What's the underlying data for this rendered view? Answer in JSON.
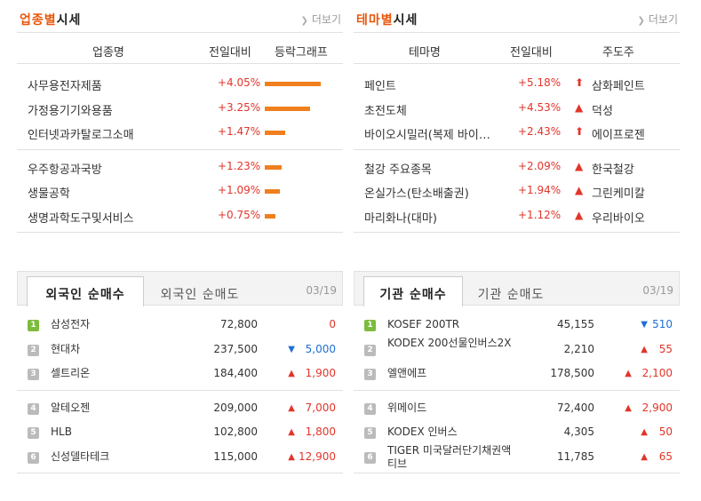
{
  "industry": {
    "title_highlight": "업종별",
    "title_rest": "시세",
    "more": "더보기",
    "columns": [
      "업종명",
      "전일대비",
      "등락그래프"
    ],
    "groups": [
      [
        {
          "name": "사무용전자제품",
          "change": "+4.05%",
          "pct": 4.05
        },
        {
          "name": "가정용기기와용품",
          "change": "+3.25%",
          "pct": 3.25
        },
        {
          "name": "인터넷과카탈로그소매",
          "change": "+1.47%",
          "pct": 1.47
        }
      ],
      [
        {
          "name": "우주항공과국방",
          "change": "+1.23%",
          "pct": 1.23
        },
        {
          "name": "생물공학",
          "change": "+1.09%",
          "pct": 1.09
        },
        {
          "name": "생명과학도구및서비스",
          "change": "+0.75%",
          "pct": 0.75
        }
      ]
    ]
  },
  "theme": {
    "title_highlight": "테마별",
    "title_rest": "시세",
    "more": "더보기",
    "columns": [
      "테마명",
      "전일대비",
      "주도주"
    ],
    "groups": [
      [
        {
          "name": "페인트",
          "change": "+5.18%",
          "arrow": "⬆",
          "leader": "삼화페인트"
        },
        {
          "name": "초전도체",
          "change": "+4.53%",
          "arrow": "▲",
          "leader": "덕성"
        },
        {
          "name": "바이오시밀러(복제 바이오...",
          "change": "+2.43%",
          "arrow": "⬆",
          "leader": "에이프로젠"
        }
      ],
      [
        {
          "name": "철강 주요종목",
          "change": "+2.09%",
          "arrow": "▲",
          "leader": "한국철강"
        },
        {
          "name": "온실가스(탄소배출권)",
          "change": "+1.94%",
          "arrow": "▲",
          "leader": "그린케미칼"
        },
        {
          "name": "마리화나(대마)",
          "change": "+1.12%",
          "arrow": "▲",
          "leader": "우리바이오"
        }
      ]
    ]
  },
  "foreign": {
    "tab_active": "외국인 순매수",
    "tab_inactive": "외국인 순매도",
    "date": "03/19",
    "groups": [
      [
        {
          "rank": "1",
          "name": "삼성전자",
          "price": "72,800",
          "arrow": "",
          "change": "0",
          "color": "red"
        },
        {
          "rank": "2",
          "name": "현대차",
          "price": "237,500",
          "arrow": "▼",
          "change": "5,000",
          "color": "blue"
        },
        {
          "rank": "3",
          "name": "셀트리온",
          "price": "184,400",
          "arrow": "▲",
          "change": "1,900",
          "color": "red"
        }
      ],
      [
        {
          "rank": "4",
          "name": "알테오젠",
          "price": "209,000",
          "arrow": "▲",
          "change": "7,000",
          "color": "red"
        },
        {
          "rank": "5",
          "name": "HLB",
          "price": "102,800",
          "arrow": "▲",
          "change": "1,800",
          "color": "red"
        },
        {
          "rank": "6",
          "name": "신성델타테크",
          "price": "115,000",
          "arrow": "▲",
          "change": "12,900",
          "color": "red"
        }
      ]
    ]
  },
  "institution": {
    "tab_active": "기관 순매수",
    "tab_inactive": "기관 순매도",
    "date": "03/19",
    "groups": [
      [
        {
          "rank": "1",
          "name": "KOSEF 200TR",
          "price": "45,155",
          "arrow": "▼",
          "change": "510",
          "color": "blue"
        },
        {
          "rank": "2",
          "name": "KODEX 200선물인버스2X",
          "price": "2,210",
          "arrow": "▲",
          "change": "55",
          "color": "red"
        },
        {
          "rank": "3",
          "name": "엘앤에프",
          "price": "178,500",
          "arrow": "▲",
          "change": "2,100",
          "color": "red"
        }
      ],
      [
        {
          "rank": "4",
          "name": "위메이드",
          "price": "72,400",
          "arrow": "▲",
          "change": "2,900",
          "color": "red"
        },
        {
          "rank": "5",
          "name": "KODEX 인버스",
          "price": "4,305",
          "arrow": "▲",
          "change": "50",
          "color": "red"
        },
        {
          "rank": "6",
          "name": "TIGER 미국달러단기채권액티브",
          "price": "11,785",
          "arrow": "▲",
          "change": "65",
          "color": "red"
        }
      ]
    ]
  }
}
